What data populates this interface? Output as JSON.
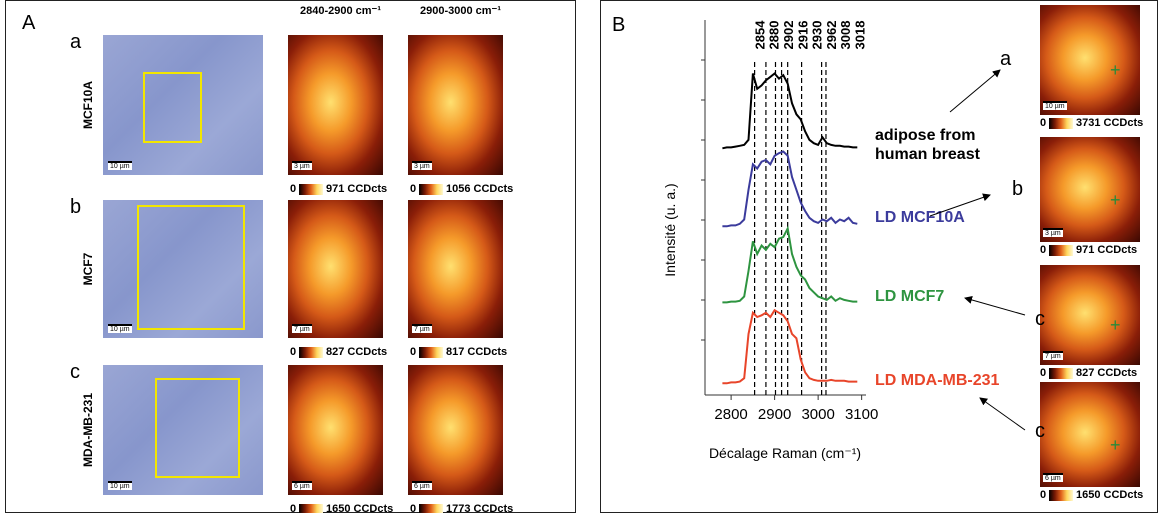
{
  "panel_a": {
    "label": "A",
    "column_headers": [
      "2840-2900 cm⁻¹",
      "2900-3000 cm⁻¹"
    ],
    "rows": [
      {
        "letter": "a",
        "cell_line": "MCF10A",
        "scale_bar": "10 µm",
        "maps": [
          {
            "scale_bar": "3 µm",
            "cbar_min": "0",
            "cbar_max": "971 CCDcts"
          },
          {
            "scale_bar": "3 µm",
            "cbar_min": "0",
            "cbar_max": "1056 CCDcts"
          }
        ]
      },
      {
        "letter": "b",
        "cell_line": "MCF7",
        "scale_bar": "10 µm",
        "maps": [
          {
            "scale_bar": "7 µm",
            "cbar_min": "0",
            "cbar_max": "827 CCDcts"
          },
          {
            "scale_bar": "7 µm",
            "cbar_min": "0",
            "cbar_max": "817 CCDcts"
          }
        ]
      },
      {
        "letter": "c",
        "cell_line": "MDA-MB-231",
        "scale_bar": "10 µm",
        "maps": [
          {
            "scale_bar": "6 µm",
            "cbar_min": "0",
            "cbar_max": "1650 CCDcts"
          },
          {
            "scale_bar": "6 µm",
            "cbar_min": "0",
            "cbar_max": "1773 CCDcts"
          }
        ]
      }
    ]
  },
  "panel_b": {
    "label": "B",
    "images": [
      {
        "letter": "a",
        "scale_bar": "10 µm",
        "cbar_min": "0",
        "cbar_max": "3731 CCDcts"
      },
      {
        "letter": "b",
        "scale_bar": "3 µm",
        "cbar_min": "0",
        "cbar_max": "971 CCDcts"
      },
      {
        "letter": "c",
        "scale_bar": "7 µm",
        "cbar_min": "0",
        "cbar_max": "827 CCDcts"
      },
      {
        "letter": "c",
        "scale_bar": "6 µm",
        "cbar_min": "0",
        "cbar_max": "1650 CCDcts"
      }
    ]
  },
  "chart_data": {
    "type": "line",
    "x_label": "Décalage Raman (cm⁻¹)",
    "y_label": "Intensité (u. a.)",
    "xlim": [
      2740,
      3110
    ],
    "xticks": [
      2800,
      2900,
      3000,
      3100
    ],
    "ylim": [
      0,
      1
    ],
    "peaks": [
      2854,
      2880,
      2902,
      2916,
      2930,
      2962,
      3008,
      3018
    ],
    "x": [
      2780,
      2790,
      2800,
      2810,
      2820,
      2830,
      2840,
      2850,
      2860,
      2870,
      2880,
      2890,
      2900,
      2910,
      2920,
      2930,
      2940,
      2950,
      2960,
      2970,
      2980,
      2990,
      3000,
      3010,
      3020,
      3030,
      3040,
      3050,
      3060,
      3070,
      3080,
      3090
    ],
    "series": [
      {
        "name": "adipose from human breast",
        "color": "#000000",
        "values": [
          0.02,
          0.03,
          0.03,
          0.04,
          0.05,
          0.06,
          0.12,
          0.9,
          0.72,
          0.76,
          0.82,
          0.86,
          0.9,
          0.84,
          0.88,
          0.78,
          0.55,
          0.42,
          0.36,
          0.22,
          0.12,
          0.08,
          0.06,
          0.15,
          0.08,
          0.06,
          0.05,
          0.05,
          0.04,
          0.04,
          0.03,
          0.03
        ]
      },
      {
        "name": "LD MCF10A",
        "color": "#3b3b9c",
        "values": [
          0.02,
          0.02,
          0.03,
          0.03,
          0.05,
          0.1,
          0.45,
          0.75,
          0.7,
          0.78,
          0.8,
          0.75,
          0.85,
          0.88,
          0.9,
          0.85,
          0.6,
          0.45,
          0.3,
          0.2,
          0.12,
          0.08,
          0.06,
          0.1,
          0.08,
          0.12,
          0.06,
          0.1,
          0.08,
          0.12,
          0.06,
          0.05
        ]
      },
      {
        "name": "LD MCF7",
        "color": "#2e9440",
        "values": [
          0.03,
          0.03,
          0.04,
          0.04,
          0.05,
          0.1,
          0.4,
          0.75,
          0.6,
          0.7,
          0.65,
          0.72,
          0.68,
          0.78,
          0.8,
          0.9,
          0.6,
          0.45,
          0.35,
          0.3,
          0.2,
          0.15,
          0.1,
          0.08,
          0.06,
          0.1,
          0.05,
          0.08,
          0.06,
          0.05,
          0.04,
          0.04
        ]
      },
      {
        "name": "LD MDA-MB-231",
        "color": "#e8452a",
        "values": [
          0.02,
          0.02,
          0.03,
          0.03,
          0.04,
          0.08,
          0.6,
          0.85,
          0.8,
          0.82,
          0.85,
          0.8,
          0.88,
          0.85,
          0.82,
          0.75,
          0.6,
          0.55,
          0.3,
          0.15,
          0.08,
          0.06,
          0.05,
          0.05,
          0.05,
          0.06,
          0.05,
          0.05,
          0.05,
          0.04,
          0.04,
          0.04
        ]
      }
    ]
  }
}
